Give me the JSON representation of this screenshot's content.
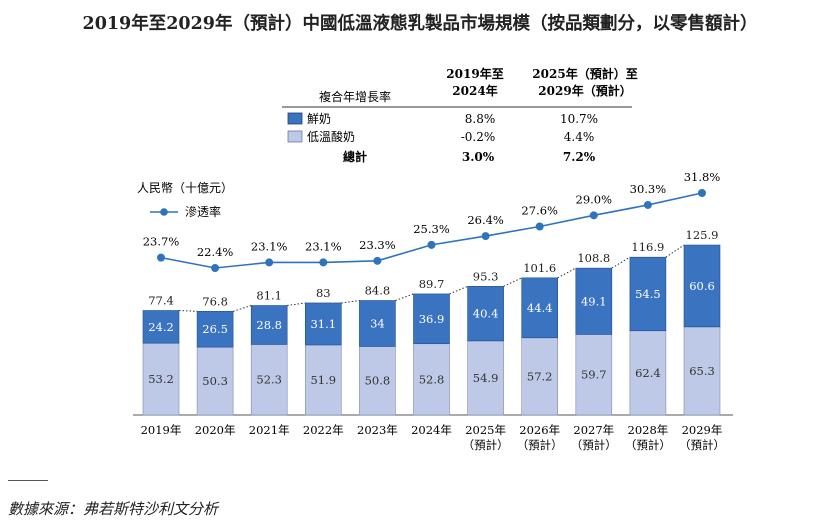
{
  "title": "2019年至2029年（預計）中國低溫液態乳製品市場規模（按品類劃分，以零售額計）",
  "cagr_table": {
    "header_label": "複合年增長率",
    "col1": [
      "2019年至",
      "2024年"
    ],
    "col2": [
      "2025年（預計）至",
      "2029年（預計）"
    ],
    "rows": [
      {
        "label": "鮮奶",
        "v1": "8.8%",
        "v2": "10.7%"
      },
      {
        "label": "低溫酸奶",
        "v1": "-0.2%",
        "v2": "4.4%"
      }
    ],
    "total": {
      "label": "總計",
      "v1": "3.0%",
      "v2": "7.2%"
    }
  },
  "unit_label": "人民幣（十億元）",
  "penetration_legend": "滲透率",
  "colors": {
    "fresh_milk": "#3a73c0",
    "low_temp_yogurt": "#bdc9e6",
    "line": "#2f73bd"
  },
  "chart_data": {
    "type": "bar",
    "stacked": true,
    "categories": [
      "2019年",
      "2020年",
      "2021年",
      "2022年",
      "2023年",
      "2024年",
      "2025年",
      "2026年",
      "2027年",
      "2028年",
      "2029年"
    ],
    "category_sublabels": [
      "",
      "",
      "",
      "",
      "",
      "",
      "（預計）",
      "（預計）",
      "（預計）",
      "（預計）",
      "（預計）"
    ],
    "series": [
      {
        "name": "低溫酸奶",
        "values": [
          53.2,
          50.3,
          52.3,
          51.9,
          50.8,
          52.8,
          54.9,
          57.2,
          59.7,
          62.4,
          65.3
        ]
      },
      {
        "name": "鮮奶",
        "values": [
          24.2,
          26.5,
          28.8,
          31.1,
          34.0,
          36.9,
          40.4,
          44.4,
          49.1,
          54.5,
          60.6
        ]
      }
    ],
    "totals": [
      77.4,
      76.8,
      81.1,
      83.0,
      84.8,
      89.7,
      95.3,
      101.6,
      108.8,
      116.9,
      125.9
    ],
    "line": {
      "name": "滲透率",
      "values": [
        23.7,
        22.4,
        23.1,
        23.1,
        23.3,
        25.3,
        26.4,
        27.6,
        29.0,
        30.3,
        31.8
      ],
      "labels": [
        "23.7%",
        "22.4%",
        "23.1%",
        "23.1%",
        "23.3%",
        "25.3%",
        "26.4%",
        "27.6%",
        "29.0%",
        "30.3%",
        "31.8%"
      ]
    }
  },
  "source": "數據來源：弗若斯特沙利文分析"
}
